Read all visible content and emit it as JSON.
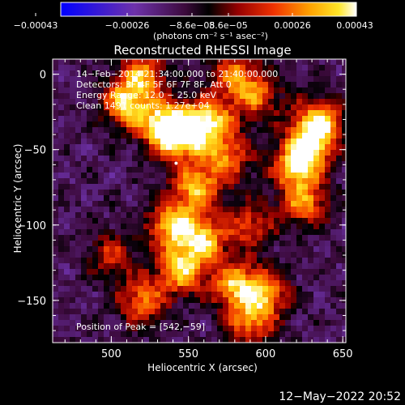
{
  "chart_data": {
    "type": "heatmap",
    "title": "Reconstructed RHESSI Image",
    "xlabel": "Heliocentric X (arcsec)",
    "ylabel": "Heliocentric Y (arcsec)",
    "xlim": [
      462,
      652
    ],
    "ylim": [
      -178,
      10
    ],
    "x_ticks": [
      500,
      550,
      600,
      650
    ],
    "x_tick_labels": [
      "500",
      "550",
      "600",
      "650"
    ],
    "y_ticks": [
      0,
      -50,
      -100,
      -150
    ],
    "y_tick_labels": [
      "0",
      "−50",
      "−100",
      "−150"
    ],
    "colorbar": {
      "range": [
        -0.00043,
        0.00043
      ],
      "tick_values": [
        -0.00043,
        -0.00026,
        -8.6e-05,
        8.6e-05,
        0.00026,
        0.00043
      ],
      "tick_labels": [
        "−0.00043",
        "−0.00026",
        "−8.6e−05",
        "8.6e−05",
        "0.00026",
        "0.00043"
      ],
      "units_label": "(photons cm⁻² s⁻¹ asec⁻²)"
    },
    "annotations": [
      "14−Feb−2014 21:34:00.000 to 21:40:00.000",
      "Detectors: 3F 4F 5F 6F 7F 8F, Att 0",
      "Energy Range: 12.0 − 25.0 keV",
      "Clean    1491 counts: 1.27e+04"
    ],
    "peak_label": "Position of Peak = [542,−59]",
    "peak_position": [
      542,
      -59
    ],
    "emission_regions": [
      {
        "x": 535,
        "y": -35,
        "intensity": 0.00043
      },
      {
        "x": 548,
        "y": -40,
        "intensity": 0.0004
      },
      {
        "x": 510,
        "y": -20,
        "intensity": 0.00035
      },
      {
        "x": 565,
        "y": -30,
        "intensity": 0.0003
      },
      {
        "x": 555,
        "y": -75,
        "intensity": 0.00032
      },
      {
        "x": 540,
        "y": -100,
        "intensity": 0.00036
      },
      {
        "x": 560,
        "y": -110,
        "intensity": 0.0003
      },
      {
        "x": 545,
        "y": -130,
        "intensity": 0.00034
      },
      {
        "x": 580,
        "y": -140,
        "intensity": 0.0003
      },
      {
        "x": 600,
        "y": -145,
        "intensity": 0.00026
      },
      {
        "x": 520,
        "y": -150,
        "intensity": 0.00024
      },
      {
        "x": 590,
        "y": -165,
        "intensity": 0.00022
      },
      {
        "x": 620,
        "y": -60,
        "intensity": 0.00036
      },
      {
        "x": 630,
        "y": -45,
        "intensity": 0.0003
      },
      {
        "x": 635,
        "y": -30,
        "intensity": 0.00028
      },
      {
        "x": 625,
        "y": -85,
        "intensity": 0.00026
      },
      {
        "x": 595,
        "y": -15,
        "intensity": 0.0002
      },
      {
        "x": 580,
        "y": 0,
        "intensity": 0.00022
      },
      {
        "x": 520,
        "y": 0,
        "intensity": 0.00026
      },
      {
        "x": 590,
        "y": -100,
        "intensity": 0.00018
      },
      {
        "x": 500,
        "y": -120,
        "intensity": 0.00015
      },
      {
        "x": 575,
        "y": -55,
        "intensity": 0.00024
      }
    ],
    "background_level": -0.0001
  },
  "footer": {
    "timestamp": "12−May−2022 20:52"
  }
}
